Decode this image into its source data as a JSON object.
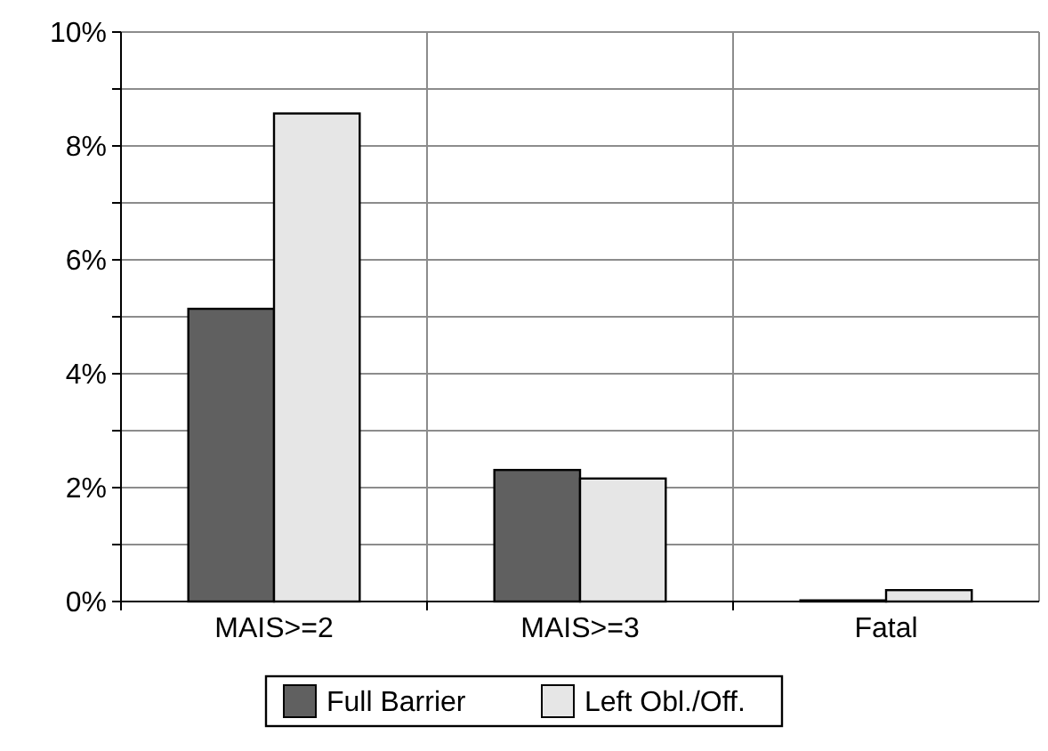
{
  "chart_data": {
    "type": "bar",
    "categories": [
      "MAIS>=2",
      "MAIS>=3",
      "Fatal"
    ],
    "series": [
      {
        "name": "Full Barrier",
        "color": "#606060",
        "values": [
          5.14,
          2.31,
          0.02
        ]
      },
      {
        "name": "Left Obl./Off.",
        "color": "#e6e6e6",
        "values": [
          8.57,
          2.16,
          0.2
        ]
      }
    ],
    "ylim": [
      0,
      10
    ],
    "yticks": [
      {
        "value": 0,
        "label": "0%"
      },
      {
        "value": 1,
        "label": null
      },
      {
        "value": 2,
        "label": "2%"
      },
      {
        "value": 3,
        "label": null
      },
      {
        "value": 4,
        "label": "4%"
      },
      {
        "value": 5,
        "label": null
      },
      {
        "value": 6,
        "label": "6%"
      },
      {
        "value": 7,
        "label": null
      },
      {
        "value": 8,
        "label": "8%"
      },
      {
        "value": 9,
        "label": null
      },
      {
        "value": 10,
        "label": "10%"
      }
    ],
    "grid": true,
    "legend": "bottom"
  }
}
